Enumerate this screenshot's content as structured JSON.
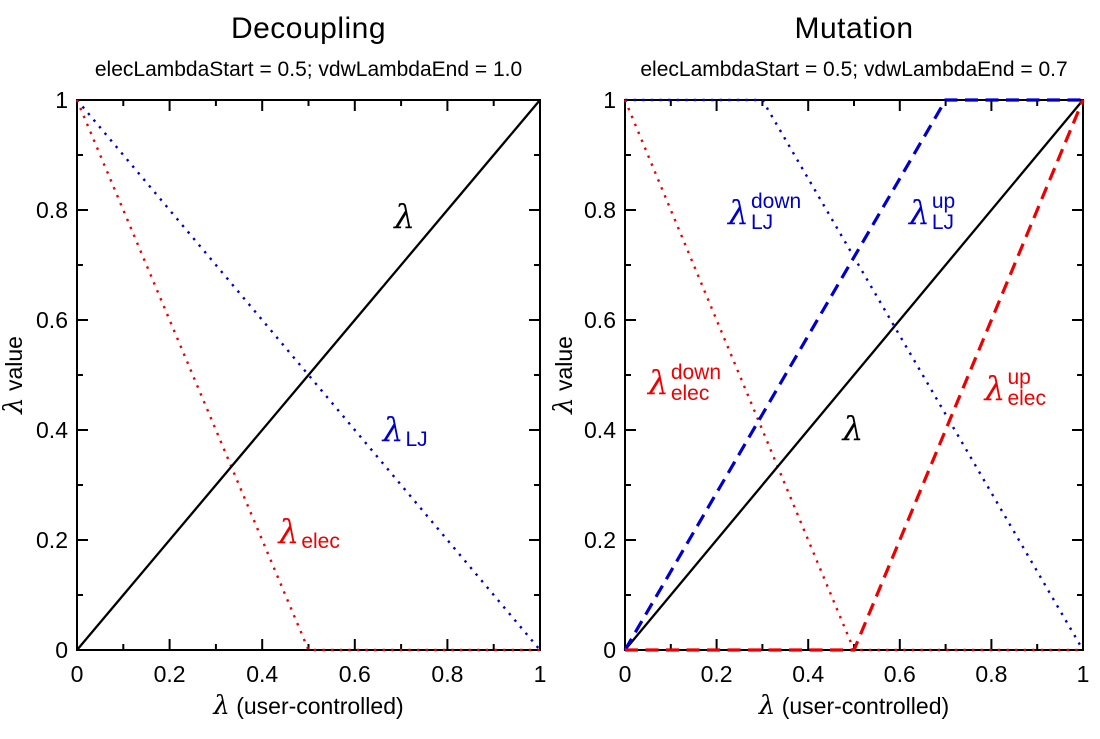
{
  "figure_title": "",
  "accent_colors": {
    "black": "#000000",
    "red": "#ee0000",
    "blue": "#0000cc"
  },
  "chart_data": [
    {
      "type": "line",
      "title": "Decoupling",
      "subtitle": "elecLambdaStart = 0.5; vdwLambdaEnd = 1.0",
      "xlabel": {
        "lambda": "λ",
        "rest": " (user-controlled)"
      },
      "ylabel": {
        "lambda": "λ",
        "rest": " value"
      },
      "xlim": [
        0,
        1
      ],
      "ylim": [
        0,
        1
      ],
      "grid": false,
      "legend_position": "none (inline text labels)",
      "tick_values": [
        0,
        0.1,
        0.2,
        0.3,
        0.4,
        0.5,
        0.6,
        0.7,
        0.8,
        0.9,
        1
      ],
      "major_tick_values": [
        0,
        0.2,
        0.4,
        0.6,
        0.8,
        1
      ],
      "major_tick_labels": [
        "0",
        "0.2",
        "0.4",
        "0.6",
        "0.8",
        "1"
      ],
      "series": [
        {
          "name": "lambda_LJ",
          "label": "λ_LJ",
          "color": "#0000cc",
          "style": "dotted",
          "points": [
            [
              0,
              1
            ],
            [
              1,
              0
            ]
          ]
        },
        {
          "name": "lambda_elec",
          "label": "λ_elec",
          "color": "#ee0000",
          "style": "dotted",
          "points": [
            [
              0,
              1
            ],
            [
              0.5,
              0
            ],
            [
              1,
              0
            ]
          ]
        },
        {
          "name": "lambda",
          "label": "λ",
          "color": "#000000",
          "style": "solid",
          "points": [
            [
              0,
              0
            ],
            [
              1,
              1
            ]
          ]
        }
      ],
      "annotations": [
        {
          "text": "λ",
          "sup": "",
          "sub": "",
          "color": "#000000",
          "x": 0.685,
          "y": 0.775
        },
        {
          "text": "λ",
          "sup": "",
          "sub": "LJ",
          "color": "#0000cc",
          "x": 0.66,
          "y": 0.385
        },
        {
          "text": "λ",
          "sup": "",
          "sub": "elec",
          "color": "#ee0000",
          "x": 0.435,
          "y": 0.2
        }
      ]
    },
    {
      "type": "line",
      "title": "Mutation",
      "subtitle": "elecLambdaStart = 0.5; vdwLambdaEnd = 0.7",
      "xlabel": {
        "lambda": "λ",
        "rest": " (user-controlled)"
      },
      "ylabel": {
        "lambda": "λ",
        "rest": " value"
      },
      "xlim": [
        0,
        1
      ],
      "ylim": [
        0,
        1
      ],
      "grid": false,
      "legend_position": "none (inline text labels)",
      "tick_values": [
        0,
        0.1,
        0.2,
        0.3,
        0.4,
        0.5,
        0.6,
        0.7,
        0.8,
        0.9,
        1
      ],
      "major_tick_values": [
        0,
        0.2,
        0.4,
        0.6,
        0.8,
        1
      ],
      "major_tick_labels": [
        "0",
        "0.2",
        "0.4",
        "0.6",
        "0.8",
        "1"
      ],
      "series": [
        {
          "name": "lambda_LJ_down",
          "label": "λ_LJ^down",
          "color": "#0000cc",
          "style": "dotted",
          "points": [
            [
              0,
              1
            ],
            [
              0.3,
              1
            ],
            [
              1,
              0
            ]
          ]
        },
        {
          "name": "lambda_elec_down",
          "label": "λ_elec^down",
          "color": "#ee0000",
          "style": "dotted",
          "points": [
            [
              0,
              1
            ],
            [
              0.5,
              0
            ],
            [
              1,
              0
            ]
          ]
        },
        {
          "name": "lambda",
          "label": "λ",
          "color": "#000000",
          "style": "solid",
          "points": [
            [
              0,
              0
            ],
            [
              1,
              1
            ]
          ]
        },
        {
          "name": "lambda_LJ_up",
          "label": "λ_LJ^up",
          "color": "#0000cc",
          "style": "dashed",
          "points": [
            [
              0,
              0
            ],
            [
              0.7,
              1
            ],
            [
              1,
              1
            ]
          ]
        },
        {
          "name": "lambda_elec_up",
          "label": "λ_elec^up",
          "color": "#ee0000",
          "style": "dashed",
          "points": [
            [
              0,
              0
            ],
            [
              0.5,
              0
            ],
            [
              1,
              1
            ]
          ]
        }
      ],
      "annotations": [
        {
          "text": "λ",
          "sup": "down",
          "sub": "LJ",
          "color": "#0000cc",
          "x": 0.225,
          "y": 0.78
        },
        {
          "text": "λ",
          "sup": "up",
          "sub": "LJ",
          "color": "#0000cc",
          "x": 0.62,
          "y": 0.78
        },
        {
          "text": "λ",
          "sup": "down",
          "sub": "elec",
          "color": "#ee0000",
          "x": 0.05,
          "y": 0.47
        },
        {
          "text": "λ",
          "sup": "up",
          "sub": "elec",
          "color": "#ee0000",
          "x": 0.785,
          "y": 0.46
        },
        {
          "text": "λ",
          "sup": "",
          "sub": "",
          "color": "#000000",
          "x": 0.475,
          "y": 0.39
        }
      ]
    }
  ]
}
